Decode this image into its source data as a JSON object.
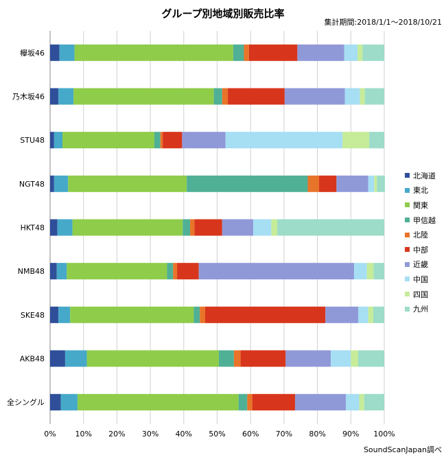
{
  "chart_data": {
    "type": "bar",
    "orientation": "horizontal",
    "stacked": true,
    "percent": true,
    "title": "グループ別地域別販売比率",
    "subtitle": "集計期間:2018/1/1～2018/10/21",
    "source": "SoundScanJapan調べ",
    "categories": [
      "欅坂46",
      "乃木坂46",
      "STU48",
      "NGT48",
      "HKT48",
      "NMB48",
      "SKE48",
      "AKB48",
      "全シングル"
    ],
    "x_ticks": [
      "0%",
      "10%",
      "20%",
      "30%",
      "40%",
      "50%",
      "60%",
      "70%",
      "80%",
      "90%",
      "100%"
    ],
    "xlim": [
      0,
      100
    ],
    "grid": true,
    "legend": "right",
    "series": [
      {
        "name": "北海道",
        "color": "#2f4f9a",
        "values": [
          2.8,
          2.5,
          1.2,
          1.2,
          2.2,
          2.0,
          2.5,
          4.5,
          3.2
        ]
      },
      {
        "name": "東北",
        "color": "#46a9c9",
        "values": [
          4.5,
          4.5,
          2.5,
          4.2,
          4.5,
          3.0,
          3.5,
          6.5,
          5.0
        ]
      },
      {
        "name": "関東",
        "color": "#8fcc4a",
        "values": [
          47.5,
          42.0,
          27.5,
          35.5,
          33.0,
          30.0,
          37.0,
          39.5,
          48.2
        ]
      },
      {
        "name": "甲信越",
        "color": "#4fb096",
        "values": [
          3.2,
          2.5,
          1.8,
          36.2,
          2.2,
          1.8,
          1.8,
          4.5,
          2.6
        ]
      },
      {
        "name": "北陸",
        "color": "#e8742a",
        "values": [
          1.5,
          1.7,
          0.7,
          3.4,
          1.3,
          1.2,
          1.6,
          2.0,
          1.5
        ]
      },
      {
        "name": "中部",
        "color": "#d7361c",
        "values": [
          14.5,
          17.0,
          5.8,
          5.2,
          8.3,
          6.5,
          36.0,
          13.5,
          12.8
        ]
      },
      {
        "name": "近畿",
        "color": "#9099d8",
        "values": [
          14.0,
          18.0,
          13.0,
          9.5,
          9.3,
          46.5,
          9.8,
          13.5,
          15.2
        ]
      },
      {
        "name": "中国",
        "color": "#a6def4",
        "values": [
          4.0,
          4.5,
          35.0,
          1.8,
          5.4,
          3.8,
          3.0,
          6.0,
          4.0
        ]
      },
      {
        "name": "四国",
        "color": "#c6ec9a",
        "values": [
          1.5,
          1.5,
          8.0,
          0.8,
          1.8,
          2.0,
          1.5,
          2.2,
          1.5
        ]
      },
      {
        "name": "九州",
        "color": "#9cdcc8",
        "values": [
          6.5,
          5.8,
          4.5,
          2.4,
          32.0,
          3.2,
          3.3,
          7.8,
          6.0
        ]
      }
    ]
  }
}
